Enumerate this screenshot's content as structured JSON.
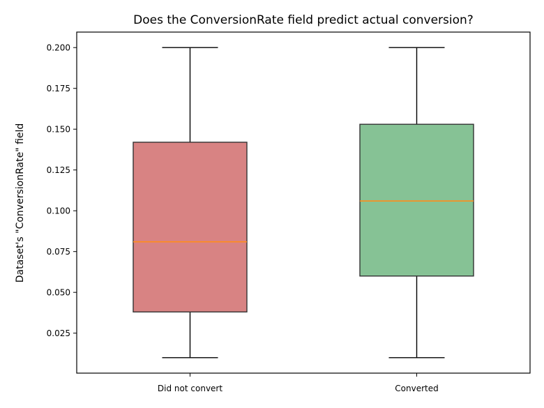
{
  "chart_data": {
    "type": "box",
    "title": "Does the ConversionRate field predict actual conversion?",
    "xlabel": "",
    "ylabel": "Dataset's \"ConversionRate\" field",
    "categories": [
      "Did not convert",
      "Converted"
    ],
    "ylim": [
      0.0005,
      0.2095
    ],
    "yticks": [
      0.025,
      0.05,
      0.075,
      0.1,
      0.125,
      0.15,
      0.175,
      0.2
    ],
    "ytick_labels": [
      "0.025",
      "0.050",
      "0.075",
      "0.100",
      "0.125",
      "0.150",
      "0.175",
      "0.200"
    ],
    "boxes": [
      {
        "label": "Did not convert",
        "whisker_low": 0.01,
        "q1": 0.038,
        "median": 0.081,
        "q3": 0.142,
        "whisker_high": 0.2,
        "color": "#d88383"
      },
      {
        "label": "Converted",
        "whisker_low": 0.01,
        "q1": 0.06,
        "median": 0.106,
        "q3": 0.153,
        "whisker_high": 0.2,
        "color": "#86c295"
      }
    ],
    "median_color": "#ff8c1a",
    "box_edge_color": "#333333",
    "grid": false,
    "legend": "none"
  }
}
